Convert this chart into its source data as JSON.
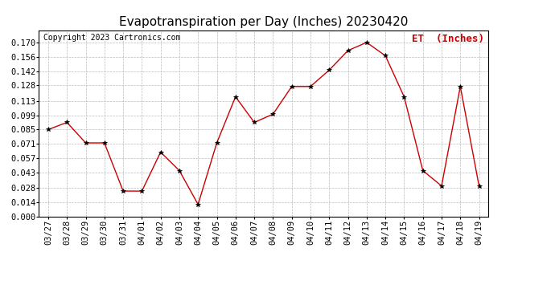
{
  "title": "Evapotranspiration per Day (Inches) 20230420",
  "copyright": "Copyright 2023 Cartronics.com",
  "legend_label": "ET  (Inches)",
  "x_labels": [
    "03/27",
    "03/28",
    "03/29",
    "03/30",
    "03/31",
    "04/01",
    "04/02",
    "04/03",
    "04/04",
    "04/05",
    "04/06",
    "04/07",
    "04/08",
    "04/09",
    "04/10",
    "04/11",
    "04/12",
    "04/13",
    "04/14",
    "04/15",
    "04/16",
    "04/17",
    "04/18",
    "04/19"
  ],
  "y_values": [
    0.085,
    0.092,
    0.072,
    0.072,
    0.025,
    0.025,
    0.063,
    0.045,
    0.012,
    0.072,
    0.117,
    0.092,
    0.1,
    0.127,
    0.127,
    0.143,
    0.162,
    0.17,
    0.157,
    0.117,
    0.045,
    0.03,
    0.127,
    0.03
  ],
  "line_color": "#cc0000",
  "marker_color": "#000000",
  "grid_color": "#bbbbbb",
  "background_color": "#ffffff",
  "title_fontsize": 11,
  "copyright_fontsize": 7,
  "legend_fontsize": 9,
  "tick_fontsize": 7.5,
  "ylim": [
    0.0,
    0.182
  ],
  "yticks": [
    0.0,
    0.014,
    0.028,
    0.043,
    0.057,
    0.071,
    0.085,
    0.099,
    0.113,
    0.128,
    0.142,
    0.156,
    0.17
  ]
}
